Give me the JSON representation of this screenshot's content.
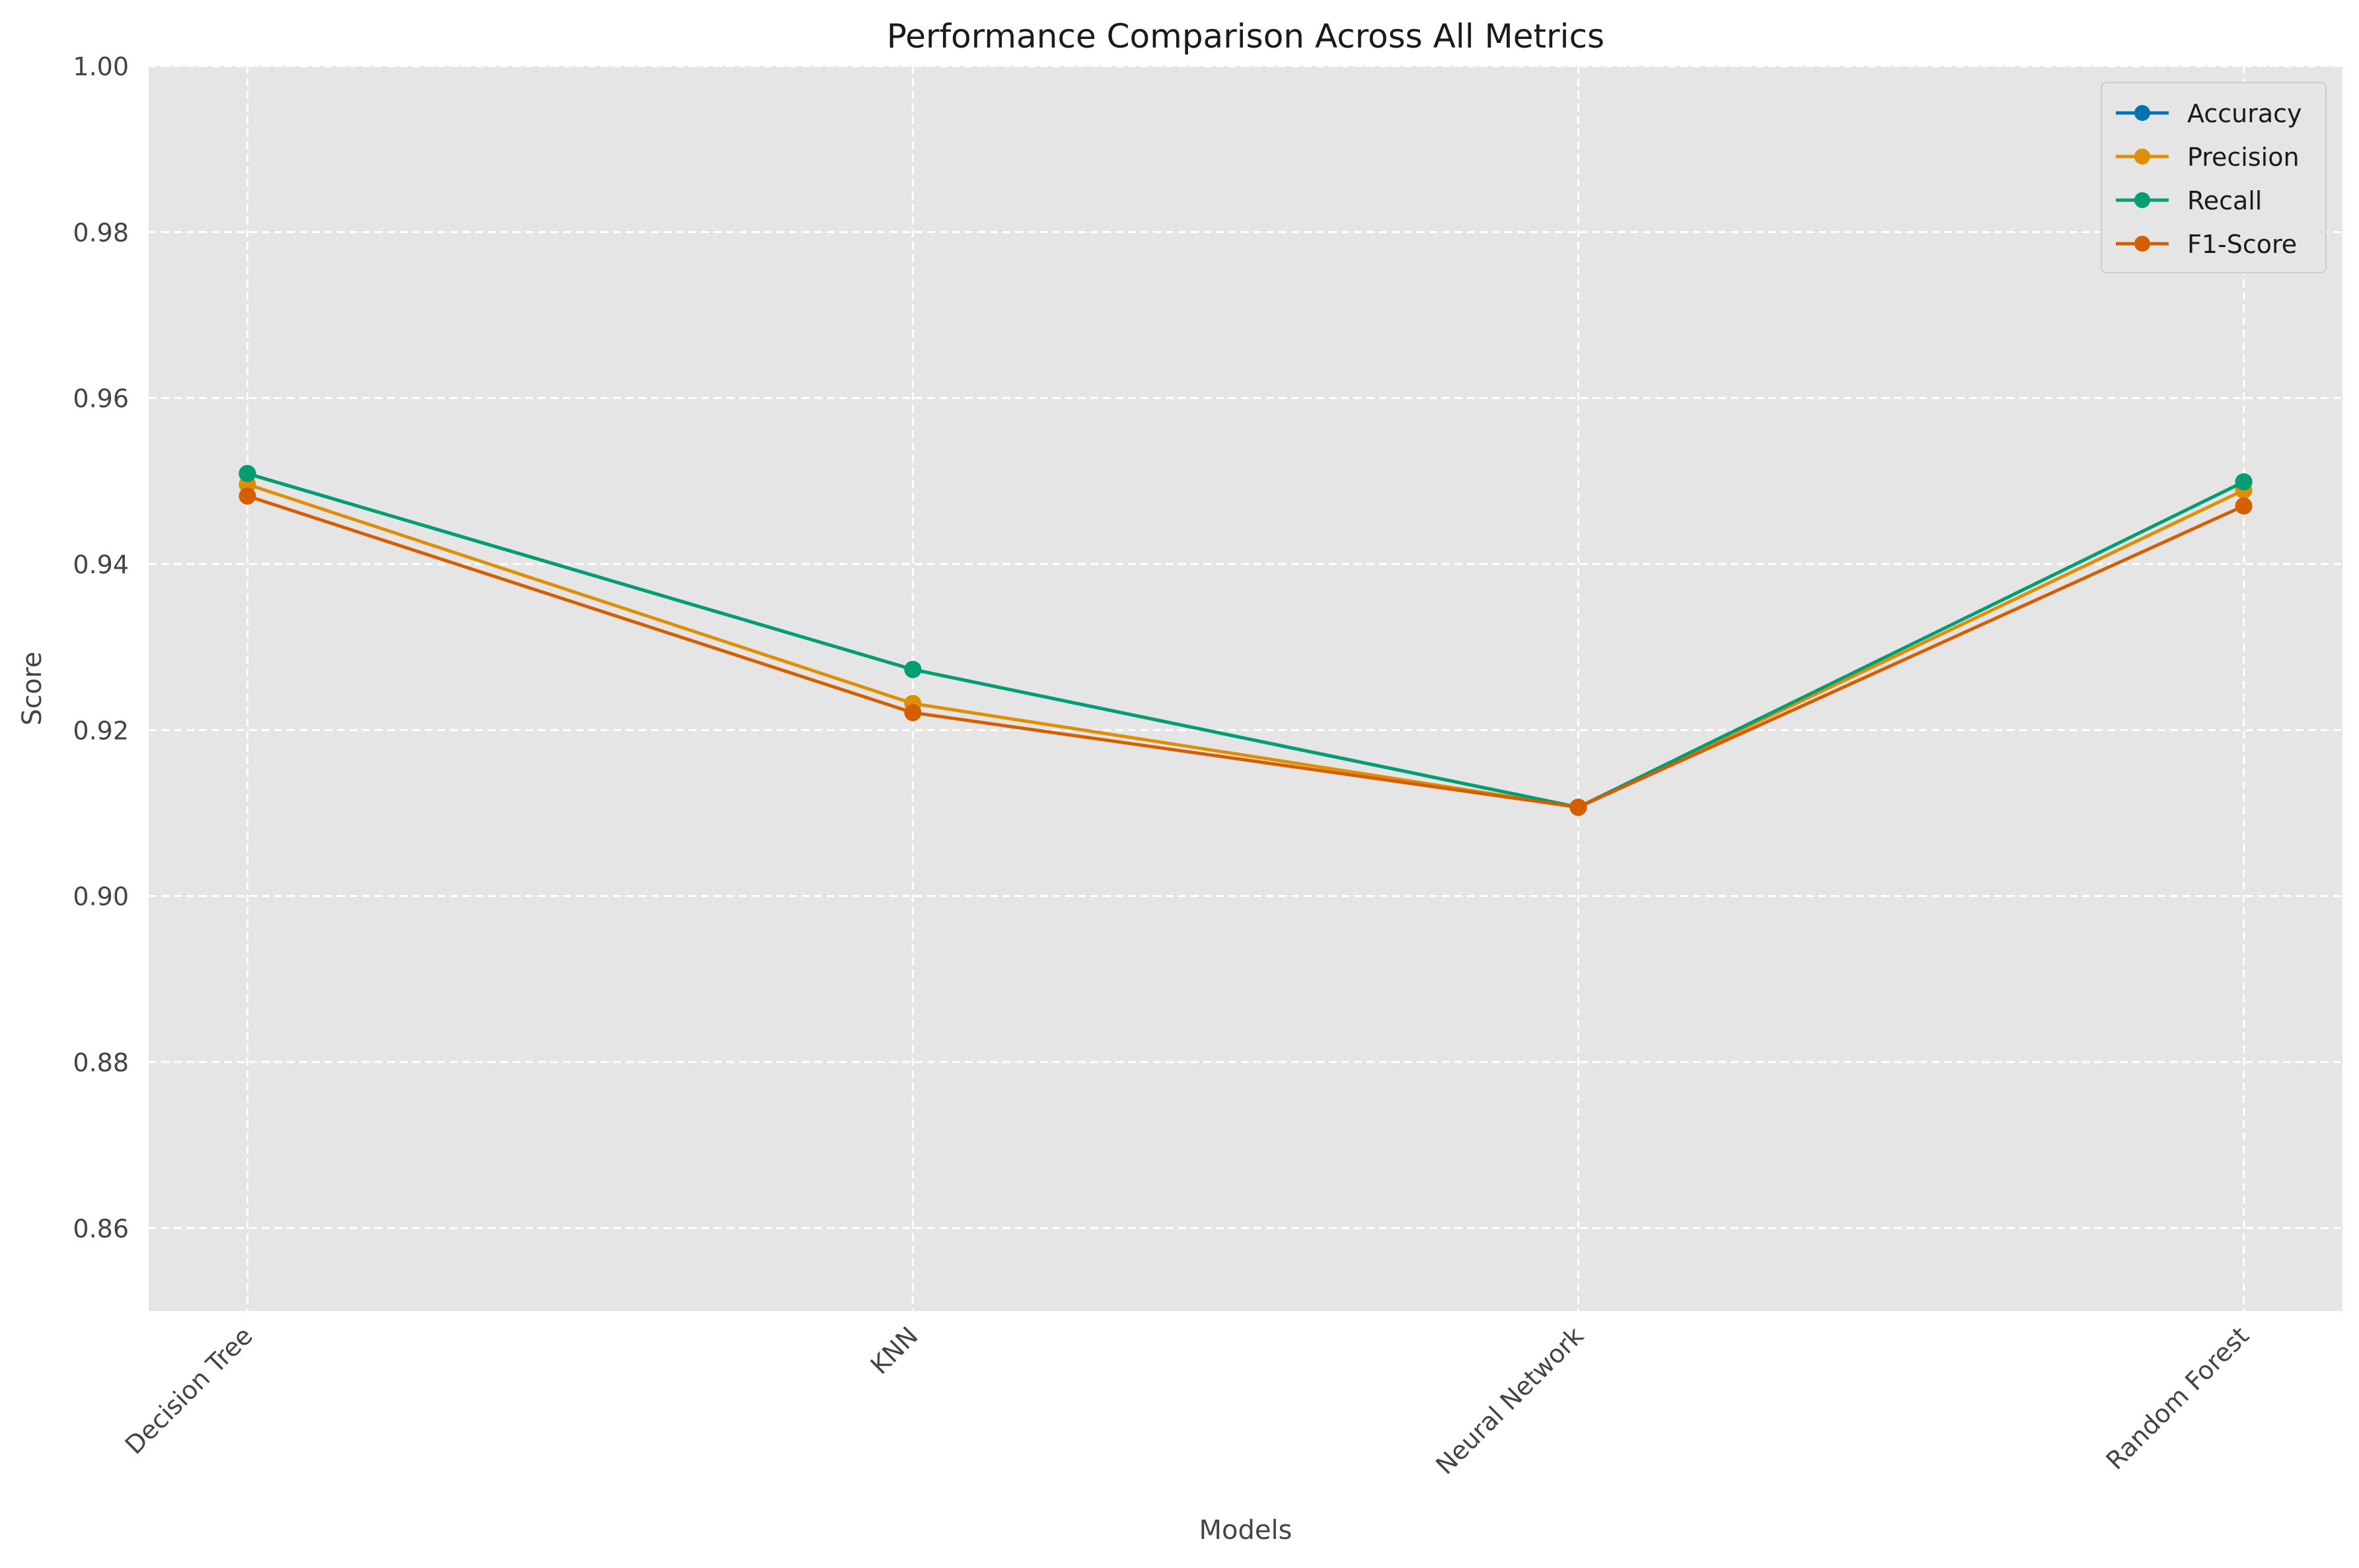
{
  "chart_data": {
    "type": "line",
    "title": "Performance Comparison Across All Metrics",
    "xlabel": "Models",
    "ylabel": "Score",
    "categories": [
      "Decision Tree",
      "KNN",
      "Neural Network",
      "Random Forest"
    ],
    "ylim": [
      0.85,
      1.0
    ],
    "yticks": [
      0.86,
      0.88,
      0.9,
      0.92,
      0.94,
      0.96,
      0.98,
      1.0
    ],
    "ytick_labels": [
      "0.86",
      "0.88",
      "0.90",
      "0.92",
      "0.94",
      "0.96",
      "0.98",
      "1.00"
    ],
    "grid": true,
    "legend_position": "top-right",
    "series": [
      {
        "name": "Accuracy",
        "color": "#0173b2",
        "values": [
          0.9509,
          0.9273,
          0.9107,
          0.9499
        ]
      },
      {
        "name": "Precision",
        "color": "#de8f05",
        "values": [
          0.9496,
          0.9232,
          0.9107,
          0.9489
        ]
      },
      {
        "name": "Recall",
        "color": "#029e73",
        "values": [
          0.9509,
          0.9273,
          0.9107,
          0.9499
        ]
      },
      {
        "name": "F1-Score",
        "color": "#d55e00",
        "values": [
          0.9482,
          0.9221,
          0.9107,
          0.947
        ]
      }
    ]
  }
}
